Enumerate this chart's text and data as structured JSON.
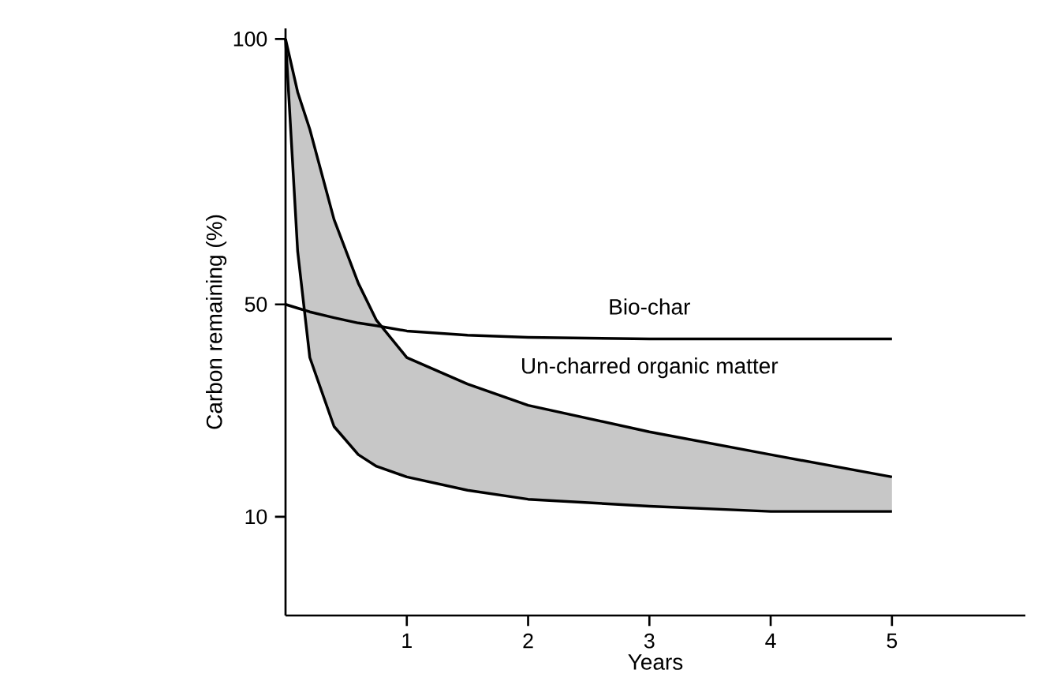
{
  "chart_data": {
    "type": "line",
    "xlabel": "Years",
    "ylabel": "Carbon remaining (%)",
    "x": [
      0,
      0.1,
      0.2,
      0.4,
      0.6,
      0.75,
      1,
      1.5,
      2,
      3,
      4,
      5
    ],
    "series": [
      {
        "color": "#000000",
        "values": [
          50,
          49.3,
          48.6,
          47.5,
          46.5,
          46,
          45,
          44.2,
          43.8,
          43.5,
          43.5,
          43.5
        ]
      },
      {
        "color": "#000000",
        "values": [
          100,
          90,
          83,
          66,
          54,
          47,
          40,
          35,
          31,
          26,
          21.7,
          17.5
        ],
        "lower": [
          100,
          60,
          40,
          27,
          21.7,
          19.5,
          17.5,
          15,
          13.3,
          12,
          11,
          11
        ],
        "upper": [
          100,
          90,
          83,
          66,
          54,
          47,
          40,
          35,
          31,
          26,
          21.7,
          17.5
        ]
      },
      {
        "color": "#000000",
        "values": [
          100,
          60,
          40,
          27,
          21.7,
          19.5,
          17.5,
          15,
          13.3,
          12,
          11,
          11
        ]
      }
    ],
    "xlim": [
      0,
      6.1
    ],
    "ylim": [
      -8.6,
      102
    ],
    "xticks": [
      1,
      2,
      3,
      4,
      5
    ],
    "yticks": [
      10,
      50,
      100
    ],
    "grid": false,
    "marker": "none",
    "line_style": "solid",
    "annotations": [
      "Bio-char",
      "Un-charred organic matter"
    ]
  }
}
